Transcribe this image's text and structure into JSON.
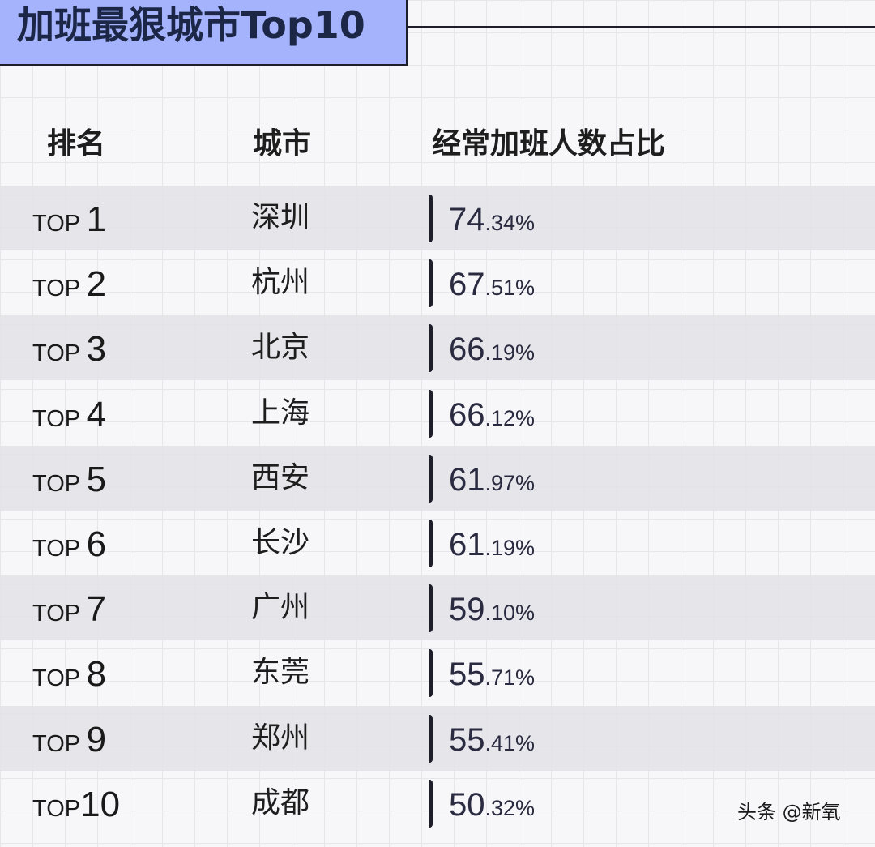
{
  "title": "加班最狠城市Top10",
  "headers": {
    "rank": "排名",
    "city": "城市",
    "ratio": "经常加班人数占比"
  },
  "watermark": "头条 @新氧",
  "rows": [
    {
      "prefix": "TOP ",
      "num": "1",
      "city": "深圳",
      "int": "74",
      "dec": ".34%"
    },
    {
      "prefix": "TOP ",
      "num": "2",
      "city": "杭州",
      "int": "67",
      "dec": ".51%"
    },
    {
      "prefix": "TOP ",
      "num": "3",
      "city": "北京",
      "int": "66",
      "dec": ".19%"
    },
    {
      "prefix": "TOP ",
      "num": "4",
      "city": "上海",
      "int": "66",
      "dec": ".12%"
    },
    {
      "prefix": "TOP ",
      "num": "5",
      "city": "西安",
      "int": "61",
      "dec": ".97%"
    },
    {
      "prefix": "TOP ",
      "num": "6",
      "city": "长沙",
      "int": "61",
      "dec": ".19%"
    },
    {
      "prefix": "TOP ",
      "num": "7",
      "city": "广州",
      "int": "59",
      "dec": ".10%"
    },
    {
      "prefix": "TOP ",
      "num": "8",
      "city": "东莞",
      "int": "55",
      "dec": ".71%"
    },
    {
      "prefix": "TOP ",
      "num": "9",
      "city": "郑州",
      "int": "55",
      "dec": ".41%"
    },
    {
      "prefix": "TOP",
      "num": "10",
      "city": "成都",
      "int": "50",
      "dec": ".32%"
    }
  ],
  "colors": [
    "#88b6ff",
    "#ff8888",
    "#7ee0cc",
    "#ffc4d0",
    "#a5acff",
    "#ffd87a",
    "#88b6ff",
    "#ff8888",
    "#7ee0cc",
    "#ffc4d0"
  ],
  "chart_data": {
    "type": "bar",
    "orientation": "horizontal",
    "title": "加班最狠城市Top10",
    "categories": [
      "深圳",
      "杭州",
      "北京",
      "上海",
      "西安",
      "长沙",
      "广州",
      "东莞",
      "郑州",
      "成都"
    ],
    "values": [
      74.34,
      67.51,
      66.19,
      66.12,
      61.97,
      61.19,
      59.1,
      55.71,
      55.41,
      50.32
    ],
    "unit": "%",
    "grid": true,
    "legend": "none"
  }
}
